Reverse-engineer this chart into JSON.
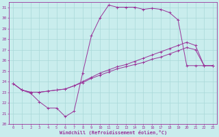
{
  "xlabel": "Windchill (Refroidissement éolien,°C)",
  "bg_color": "#c9eded",
  "line_color": "#993399",
  "grid_color": "#a8d8d8",
  "xlim": [
    -0.5,
    23.5
  ],
  "ylim": [
    20,
    31.5
  ],
  "yticks": [
    20,
    21,
    22,
    23,
    24,
    25,
    26,
    27,
    28,
    29,
    30,
    31
  ],
  "xticks": [
    0,
    1,
    2,
    3,
    4,
    5,
    6,
    7,
    8,
    9,
    10,
    11,
    12,
    13,
    14,
    15,
    16,
    17,
    18,
    19,
    20,
    21,
    22,
    23
  ],
  "line1_x": [
    0,
    1,
    2,
    3,
    4,
    5,
    6,
    7,
    8,
    9,
    10,
    11,
    12,
    13,
    14,
    15,
    16,
    17,
    18,
    19,
    20,
    21,
    22,
    23
  ],
  "line1_y": [
    23.8,
    23.2,
    22.9,
    22.1,
    21.5,
    21.5,
    20.7,
    21.2,
    24.8,
    28.3,
    30.0,
    31.2,
    31.0,
    31.0,
    31.0,
    30.8,
    30.9,
    30.8,
    30.5,
    29.8,
    25.5,
    25.5,
    25.5,
    25.5
  ],
  "line2_x": [
    0,
    1,
    2,
    3,
    4,
    5,
    6,
    7,
    8,
    9,
    10,
    11,
    12,
    13,
    14,
    15,
    16,
    17,
    18,
    19,
    20,
    21,
    22,
    23
  ],
  "line2_y": [
    23.8,
    23.2,
    23.0,
    23.0,
    23.1,
    23.2,
    23.3,
    23.6,
    24.0,
    24.4,
    24.8,
    25.1,
    25.4,
    25.6,
    25.9,
    26.2,
    26.5,
    26.8,
    27.1,
    27.4,
    27.7,
    27.4,
    25.5,
    25.5
  ],
  "line3_x": [
    0,
    1,
    2,
    3,
    4,
    5,
    6,
    7,
    8,
    9,
    10,
    11,
    12,
    13,
    14,
    15,
    16,
    17,
    18,
    19,
    20,
    21,
    22,
    23
  ],
  "line3_y": [
    23.8,
    23.2,
    23.0,
    23.0,
    23.1,
    23.2,
    23.3,
    23.6,
    23.9,
    24.3,
    24.6,
    24.9,
    25.2,
    25.4,
    25.6,
    25.8,
    26.1,
    26.3,
    26.6,
    26.9,
    27.2,
    27.0,
    25.5,
    25.5
  ]
}
